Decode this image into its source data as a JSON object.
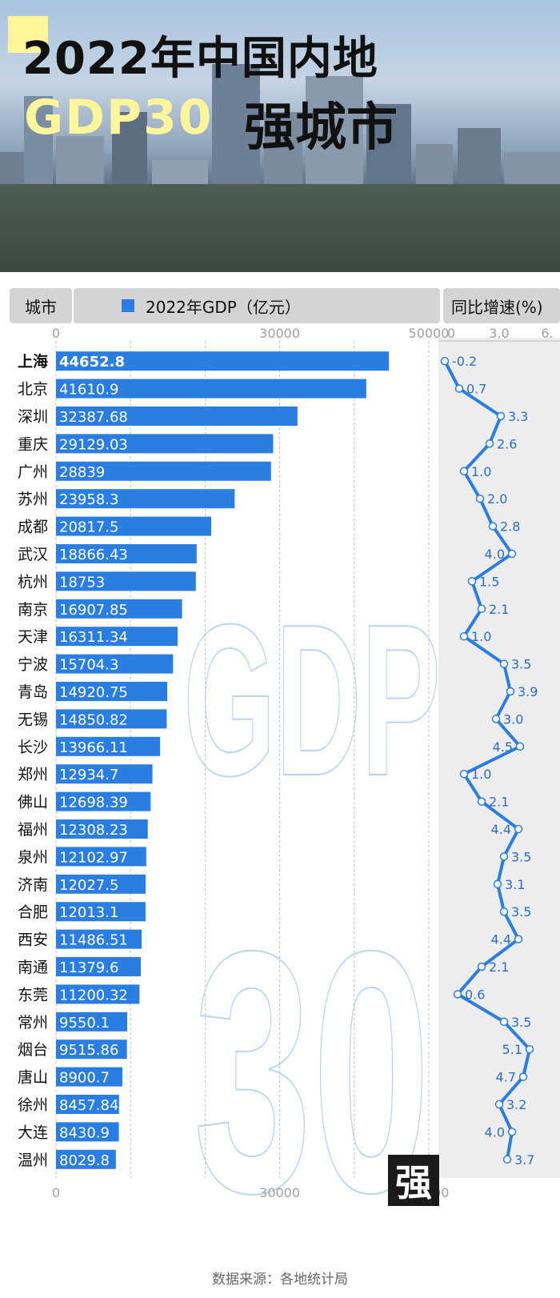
{
  "title": {
    "line1": "2022年中国内地",
    "gdp": "GDP30",
    "rest": "强城市"
  },
  "headers": {
    "city": "城市",
    "gdp": "2022年GDP（亿元）",
    "growth": "同比增速(%)"
  },
  "watermark": {
    "big": "GDP",
    "num": "30",
    "stamp": "强"
  },
  "source": "数据来源：各地统计局",
  "colors": {
    "bar": "#2a7de1",
    "line": "#2a7de1",
    "growth_panel": "#ededed",
    "header_bg": "#d4d4d4"
  },
  "chart_data": [
    {
      "type": "bar",
      "orientation": "horizontal",
      "series": [
        {
          "name": "2022年GDP（亿元）"
        }
      ],
      "categories": [
        "上海",
        "北京",
        "深圳",
        "重庆",
        "广州",
        "苏州",
        "成都",
        "武汉",
        "杭州",
        "南京",
        "天津",
        "宁波",
        "青岛",
        "无锡",
        "长沙",
        "郑州",
        "佛山",
        "福州",
        "泉州",
        "济南",
        "合肥",
        "西安",
        "南通",
        "东莞",
        "常州",
        "烟台",
        "唐山",
        "徐州",
        "大连",
        "温州"
      ],
      "values": [
        44652.8,
        41610.9,
        32387.68,
        29129.03,
        28839,
        23958.3,
        20817.5,
        18866.43,
        18753,
        16907.85,
        16311.34,
        15704.3,
        14920.75,
        14850.82,
        13966.11,
        12934.7,
        12698.39,
        12308.23,
        12102.97,
        12027.5,
        12013.1,
        11486.51,
        11379.6,
        11200.32,
        9550.1,
        9515.86,
        8900.7,
        8457.84,
        8430.9,
        8029.8
      ],
      "value_labels": [
        "44652.8",
        "41610.9",
        "32387.68",
        "29129.03",
        "28839",
        "23958.3",
        "20817.5",
        "18866.43",
        "18753",
        "16907.85",
        "16311.34",
        "15704.3",
        "14920.75",
        "14850.82",
        "13966.11",
        "12934.7",
        "12698.39",
        "12308.23",
        "12102.97",
        "12027.5",
        "12013.1",
        "11486.51",
        "11379.6",
        "11200.32",
        "9550.1",
        "9515.86",
        "8900.7",
        "8457.84",
        "8430.9",
        "8029.8"
      ],
      "xlim": [
        0,
        50000
      ],
      "xticks": [
        "0",
        "30000",
        "50000"
      ],
      "grid": true
    },
    {
      "type": "line",
      "orientation": "vertical",
      "series": [
        {
          "name": "同比增速(%)"
        }
      ],
      "values": [
        -0.2,
        0.7,
        3.3,
        2.6,
        1.0,
        2.0,
        2.8,
        4.0,
        1.5,
        2.1,
        1.0,
        3.5,
        3.9,
        3.0,
        4.5,
        1.0,
        2.1,
        4.4,
        3.5,
        3.1,
        3.5,
        4.4,
        2.1,
        0.6,
        3.5,
        5.1,
        4.7,
        3.2,
        4.0,
        3.7
      ],
      "value_labels": [
        "-0.2",
        "0.7",
        "3.3",
        "2.6",
        "1.0",
        "2.0",
        "2.8",
        "4.0",
        "1.5",
        "2.1",
        "1.0",
        "3.5",
        "3.9",
        "3.0",
        "4.5",
        "1.0",
        "2.1",
        "4.4",
        "3.5",
        "3.1",
        "3.5",
        "4.4",
        "2.1",
        "0.6",
        "3.5",
        "5.1",
        "4.7",
        "3.2",
        "4.0",
        "3.7"
      ],
      "xlim": [
        0,
        6
      ],
      "xticks": [
        "0",
        "3.0",
        "6."
      ]
    }
  ]
}
